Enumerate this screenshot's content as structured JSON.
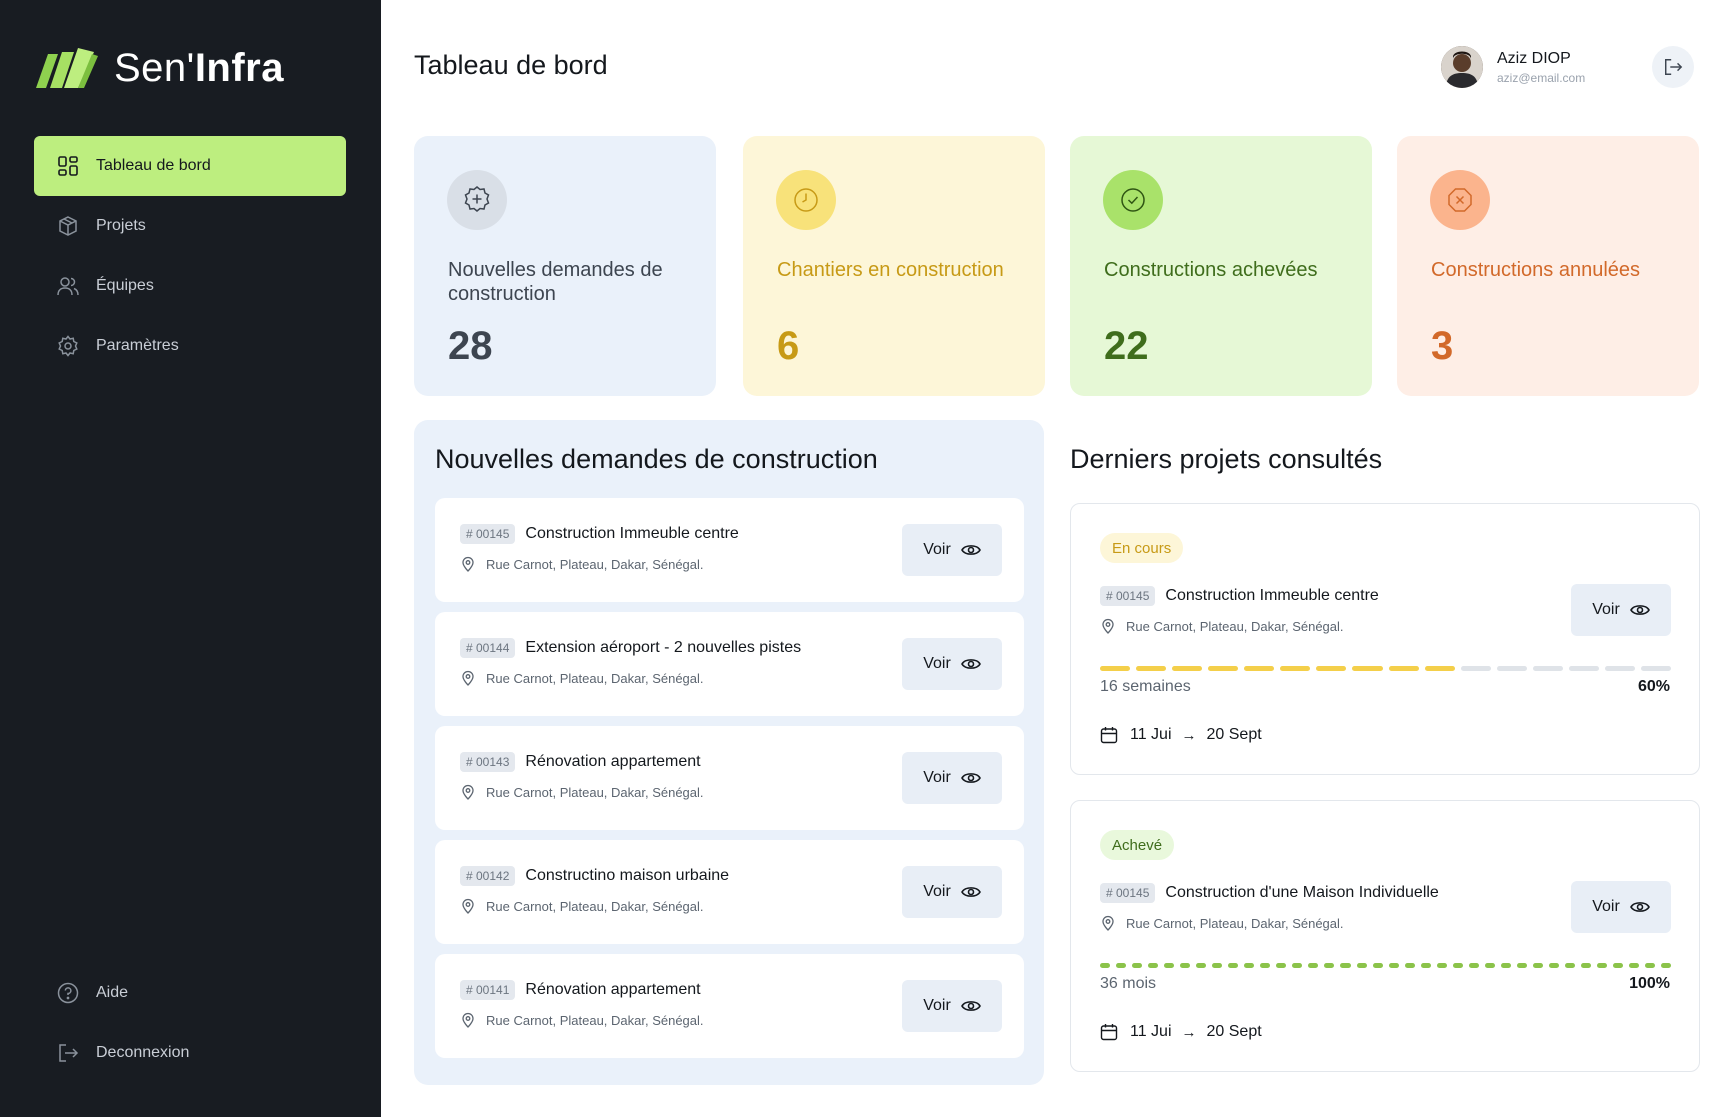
{
  "brand": {
    "name_light": "Sen'",
    "name_bold": "Infra",
    "accent": "#bdee7f"
  },
  "sidebar": {
    "items": [
      {
        "label": "Tableau de bord",
        "icon": "dashboard-icon",
        "active": true
      },
      {
        "label": "Projets",
        "icon": "box-icon"
      },
      {
        "label": "Équipes",
        "icon": "users-icon"
      },
      {
        "label": "Paramètres",
        "icon": "gear-icon"
      }
    ],
    "bottom": [
      {
        "label": "Aide",
        "icon": "help-icon"
      },
      {
        "label": "Deconnexion",
        "icon": "logout-icon"
      }
    ]
  },
  "header": {
    "title": "Tableau de bord",
    "user": {
      "name": "Aziz DIOP",
      "email": "aziz@email.com"
    }
  },
  "stats": [
    {
      "label": "Nouvelles demandes de construction",
      "value": "28",
      "bg": "#eaf1fa",
      "color": "#3d4550",
      "icon": "plus-badge-icon"
    },
    {
      "label": "Chantiers en construction",
      "value": "6",
      "bg": "#fdf6d8",
      "color": "#c79a16",
      "icon": "clock-icon"
    },
    {
      "label": "Constructions achevées",
      "value": "22",
      "bg": "#e6f8d6",
      "color": "#3f6d1c",
      "icon": "check-circle-icon"
    },
    {
      "label": "Constructions annulées",
      "value": "3",
      "bg": "#feeee6",
      "color": "#d2692a",
      "icon": "x-octagon-icon"
    }
  ],
  "requests": {
    "title": "Nouvelles demandes de construction",
    "button_label": "Voir",
    "items": [
      {
        "code": "# 00145",
        "title": "Construction Immeuble centre",
        "address": "Rue Carnot, Plateau, Dakar, Sénégal."
      },
      {
        "code": "# 00144",
        "title": "Extension aéroport - 2 nouvelles pistes",
        "address": "Rue Carnot, Plateau, Dakar, Sénégal."
      },
      {
        "code": "# 00143",
        "title": "Rénovation appartement",
        "address": "Rue Carnot, Plateau, Dakar, Sénégal."
      },
      {
        "code": "# 00142",
        "title": "Constructino maison urbaine",
        "address": "Rue Carnot, Plateau, Dakar, Sénégal."
      },
      {
        "code": "# 00141",
        "title": "Rénovation appartement",
        "address": "Rue Carnot, Plateau, Dakar, Sénégal."
      }
    ]
  },
  "projects": {
    "title": "Derniers projets consultés",
    "button_label": "Voir",
    "items": [
      {
        "status": "En cours",
        "status_bg": "#fdf6d8",
        "status_color": "#c79a16",
        "code": "# 00145",
        "title": "Construction Immeuble centre",
        "address": "Rue Carnot, Plateau, Dakar, Sénégal.",
        "duration": "16 semaines",
        "progress_label": "60%",
        "progress": 0.6,
        "segments": 16,
        "bar_color": "#f4cf4a",
        "start": "11 Jui",
        "end": "20 Sept"
      },
      {
        "status": "Achevé",
        "status_bg": "#e9f8dc",
        "status_color": "#3f6d1c",
        "code": "# 00145",
        "title": "Construction d'une Maison Individuelle",
        "address": "Rue Carnot, Plateau, Dakar, Sénégal.",
        "duration": "36 mois",
        "progress_label": "100%",
        "progress": 1.0,
        "segments": 36,
        "bar_color": "#8bc34a",
        "start": "11 Jui",
        "end": "20 Sept"
      }
    ]
  }
}
